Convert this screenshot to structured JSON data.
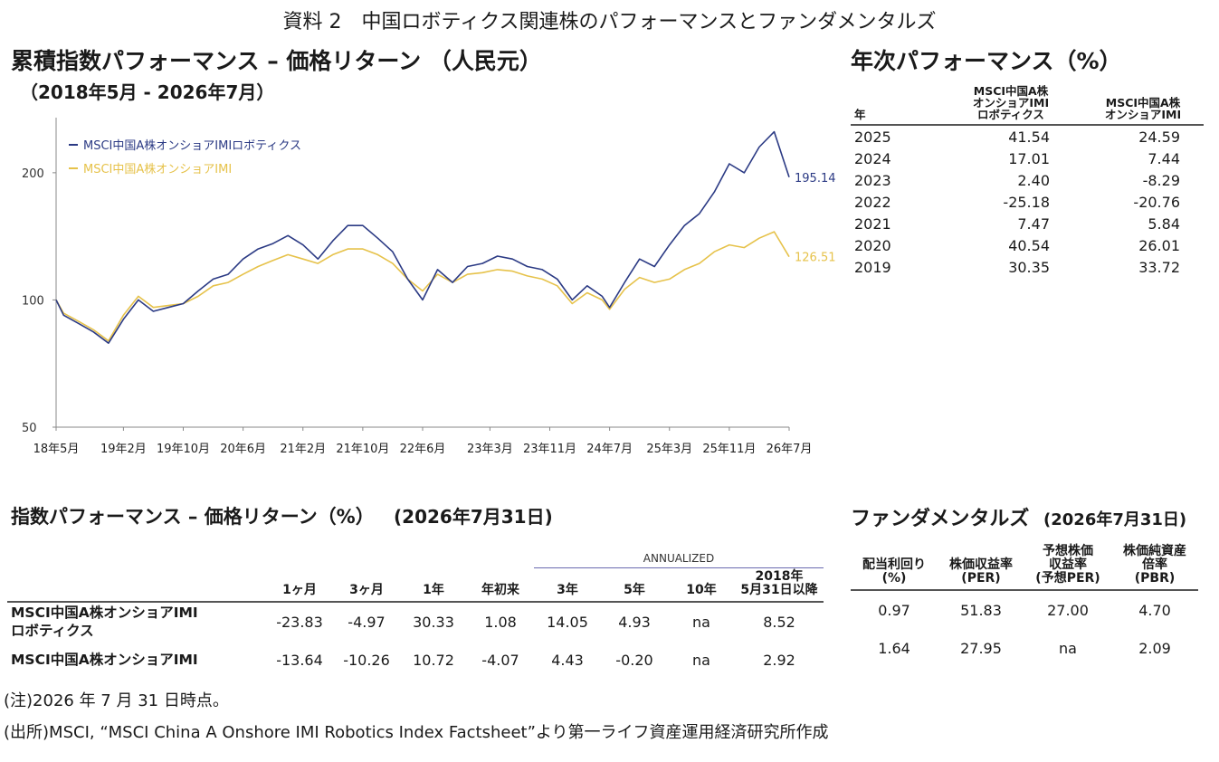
{
  "page_title": "資料 2　中国ロボティクス関連株のパフォーマンスとファンダメンタルズ",
  "cumulative": {
    "title": "累積指数パフォーマンス – 価格リターン （人民元）",
    "subtitle": "（2018年5月 - 2026年7月）"
  },
  "annual": {
    "title": "年次パフォーマンス（%）",
    "headers": [
      "年",
      "MSCI中国A株\nオンショアIMI\nロボティクス",
      "MSCI中国A株\nオンショアIMI"
    ],
    "rows": [
      [
        "2025",
        "41.54",
        "24.59"
      ],
      [
        "2024",
        "17.01",
        "7.44"
      ],
      [
        "2023",
        "2.40",
        "-8.29"
      ],
      [
        "2022",
        "-25.18",
        "-20.76"
      ],
      [
        "2021",
        "7.47",
        "5.84"
      ],
      [
        "2020",
        "40.54",
        "26.01"
      ],
      [
        "2019",
        "30.35",
        "33.72"
      ]
    ]
  },
  "index_perf": {
    "title": "指数パフォーマンス – 価格リターン（%）",
    "date": "(2026年7月31日)",
    "annualized_label": "ANNUALIZED",
    "headers": [
      "1ヶ月",
      "3ヶ月",
      "1年",
      "年初来",
      "3年",
      "5年",
      "10年",
      "2018年\n5月31日以降"
    ],
    "rows": [
      {
        "name": "MSCI中国A株オンショアIMI\nロボティクス",
        "values": [
          "-23.83",
          "-4.97",
          "30.33",
          "1.08",
          "14.05",
          "4.93",
          "na",
          "8.52"
        ]
      },
      {
        "name": "MSCI中国A株オンショアIMI",
        "values": [
          "-13.64",
          "-10.26",
          "10.72",
          "-4.07",
          "4.43",
          "-0.20",
          "na",
          "2.92"
        ]
      }
    ]
  },
  "fundamentals": {
    "title": "ファンダメンタルズ",
    "date": "(2026年7月31日)",
    "headers": [
      "配当利回り\n(%)",
      "株価収益率\n(PER)",
      "予想株価\n収益率\n(予想PER)",
      "株価純資産\n倍率\n(PBR)"
    ],
    "rows": [
      [
        "0.97",
        "51.83",
        "27.00",
        "4.70"
      ],
      [
        "1.64",
        "27.95",
        "na",
        "2.09"
      ]
    ]
  },
  "notes": {
    "note1": "(注)2026 年 7 月 31 日時点。",
    "note2": "(出所)MSCI, “MSCI China A Onshore IMI Robotics Index Factsheet”より第一ライフ資産運用経済研究所作成"
  },
  "chart_data": {
    "type": "line",
    "title": "累積指数パフォーマンス – 価格リターン （人民元）",
    "subtitle": "（2018年5月 - 2026年7月）",
    "y_scale": "log",
    "ylim": [
      50,
      270
    ],
    "y_ticks": [
      50,
      100,
      200
    ],
    "x_ticks": [
      "18年5月",
      "19年2月",
      "19年10月",
      "20年6月",
      "21年2月",
      "21年10月",
      "22年6月",
      "23年3月",
      "23年11月",
      "24年7月",
      "25年3月",
      "25年11月",
      "26年7月"
    ],
    "x_dates": [
      "2018-05",
      "2018-06",
      "2018-08",
      "2018-10",
      "2018-12",
      "2019-02",
      "2019-04",
      "2019-06",
      "2019-08",
      "2019-10",
      "2019-12",
      "2020-02",
      "2020-04",
      "2020-06",
      "2020-08",
      "2020-10",
      "2020-12",
      "2021-02",
      "2021-04",
      "2021-06",
      "2021-08",
      "2021-10",
      "2021-12",
      "2022-02",
      "2022-04",
      "2022-06",
      "2022-08",
      "2022-10",
      "2022-12",
      "2023-02",
      "2023-04",
      "2023-06",
      "2023-08",
      "2023-10",
      "2023-12",
      "2024-02",
      "2024-04",
      "2024-06",
      "2024-07",
      "2024-09",
      "2024-11",
      "2025-01",
      "2025-03",
      "2025-05",
      "2025-07",
      "2025-09",
      "2025-11",
      "2026-01",
      "2026-03",
      "2026-05",
      "2026-07"
    ],
    "series": [
      {
        "name": "MSCI中国A株オンショアIMIロボティクス",
        "color": "#2b3a84",
        "values": [
          100,
          92,
          88,
          84,
          79,
          90,
          100,
          94,
          96,
          98,
          105,
          112,
          115,
          125,
          132,
          136,
          142,
          135,
          125,
          138,
          150,
          150,
          140,
          130,
          112,
          100,
          118,
          110,
          120,
          122,
          127,
          125,
          120,
          118,
          112,
          100,
          108,
          102,
          96,
          110,
          125,
          120,
          135,
          150,
          160,
          180,
          210,
          200,
          230,
          250,
          195.14
        ]
      },
      {
        "name": "MSCI中国A株オンショアIMI",
        "color": "#e6c24a",
        "values": [
          100,
          93,
          89,
          85,
          80,
          92,
          102,
          96,
          97,
          98,
          102,
          108,
          110,
          115,
          120,
          124,
          128,
          125,
          122,
          128,
          132,
          132,
          128,
          122,
          112,
          105,
          115,
          110,
          115,
          116,
          118,
          117,
          114,
          112,
          108,
          98,
          104,
          100,
          95,
          106,
          113,
          110,
          112,
          118,
          122,
          130,
          135,
          133,
          140,
          145,
          126.51
        ]
      }
    ],
    "end_labels": [
      "195.14",
      "126.51"
    ]
  }
}
